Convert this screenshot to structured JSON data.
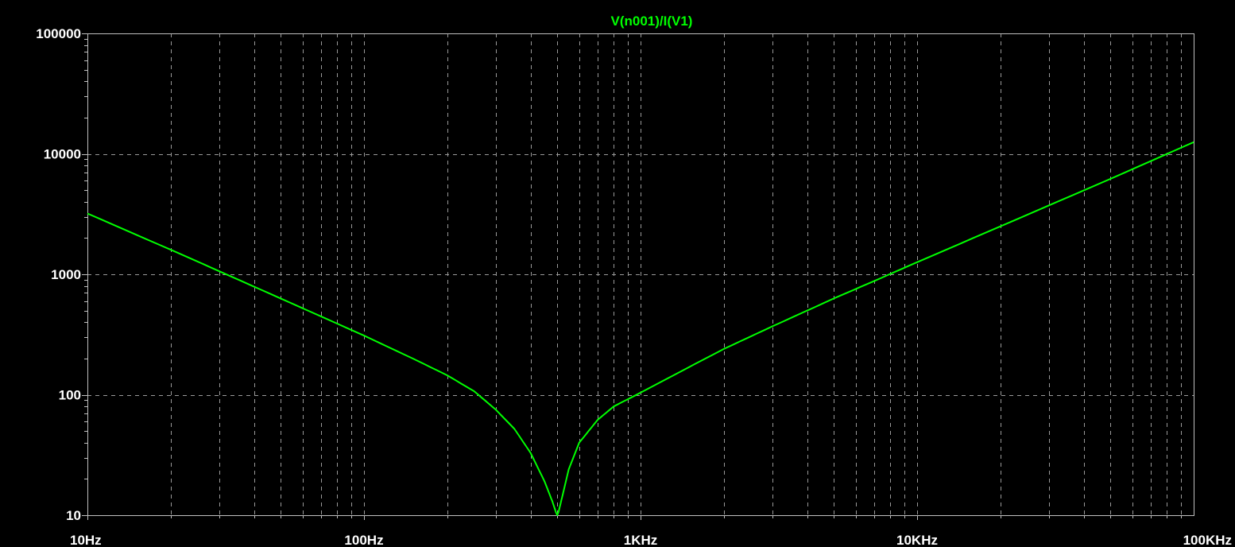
{
  "chart_data": {
    "type": "line",
    "title": "V(n001)/I(V1)",
    "xlabel": "",
    "ylabel": "",
    "x_scale": "log",
    "y_scale": "log",
    "xlim": [
      10,
      100000
    ],
    "ylim": [
      10,
      100000
    ],
    "grid": true,
    "x_ticks": [
      {
        "value": 10,
        "label": "10Hz"
      },
      {
        "value": 100,
        "label": "100Hz"
      },
      {
        "value": 1000,
        "label": "1KHz"
      },
      {
        "value": 10000,
        "label": "10KHz"
      },
      {
        "value": 100000,
        "label": "100KHz"
      }
    ],
    "y_ticks": [
      {
        "value": 10,
        "label": "10"
      },
      {
        "value": 100,
        "label": "100"
      },
      {
        "value": 1000,
        "label": "1000"
      },
      {
        "value": 10000,
        "label": "10000"
      },
      {
        "value": 100000,
        "label": "100000"
      }
    ],
    "series": [
      {
        "color": "#00ff00",
        "x": [
          10,
          20,
          30,
          50,
          100,
          150,
          200,
          250,
          300,
          350,
          400,
          450,
          480,
          495,
          500,
          505,
          520,
          550,
          600,
          700,
          800,
          1000,
          1500,
          2000,
          3000,
          5000,
          7000,
          10000,
          20000,
          50000,
          100000
        ],
        "y": [
          3200,
          1600,
          1060,
          630,
          310,
          200,
          145,
          107,
          75,
          52,
          33,
          19,
          13,
          10.5,
          10,
          10.6,
          14,
          24,
          40,
          62,
          80,
          104,
          170,
          240,
          370,
          630,
          880,
          1260,
          2500,
          6200,
          12500
        ]
      }
    ]
  },
  "colors": {
    "background": "#000000",
    "frame": "#c0c0c0",
    "grid": "#9a9a9a",
    "trace": "#00ff00",
    "title": "#00ff00",
    "tick_label": "#ffffff"
  }
}
